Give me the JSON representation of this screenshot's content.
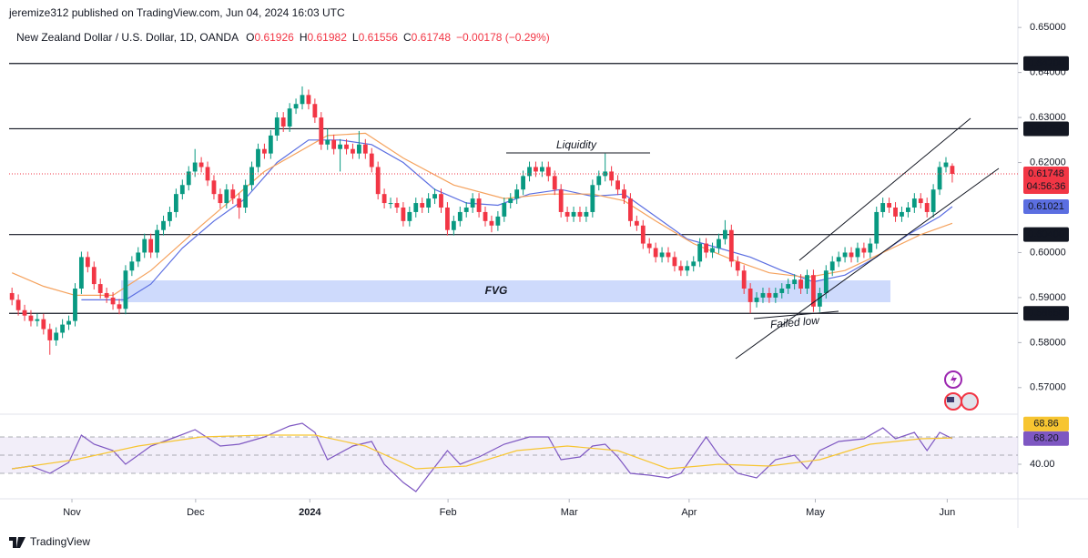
{
  "header": {
    "byline": "jeremize312 published on TradingView.com, Jun 04, 2024 16:03 UTC",
    "symbol": "New Zealand Dollar / U.S. Dollar, 1D, OANDA",
    "ohlc_letters": [
      "O",
      "H",
      "L",
      "C"
    ],
    "change": "−0.00178 (−0.29%)"
  },
  "footer": {
    "logo": "TradingView"
  },
  "chart_data": [
    {
      "type": "candlestick",
      "up_color": "#089981",
      "down_color": "#f23645",
      "categories": [
        null,
        null,
        null,
        null,
        null,
        null,
        null,
        null,
        null,
        null,
        null,
        null,
        null,
        null,
        null,
        null,
        null,
        null,
        null,
        null,
        null,
        null,
        null,
        null,
        null,
        null,
        null,
        null,
        null,
        null,
        null,
        null,
        null,
        null,
        null,
        null,
        null,
        null,
        null,
        null,
        null,
        null,
        null,
        null,
        null,
        null,
        null,
        null,
        null,
        null,
        null,
        null,
        null,
        null,
        null,
        null,
        null,
        null,
        null,
        null,
        null,
        null,
        null,
        null,
        null,
        null,
        null,
        null,
        null,
        null,
        null,
        null,
        null,
        null,
        null,
        null,
        null,
        null,
        null,
        null,
        null,
        null,
        null,
        null,
        null,
        null,
        null,
        null,
        null,
        null,
        null,
        null,
        null,
        null,
        null,
        null,
        null,
        null,
        null,
        null,
        null,
        null,
        null,
        null,
        null,
        null,
        null,
        null,
        null,
        null,
        null,
        null,
        null,
        null,
        null,
        null,
        null,
        null,
        null,
        null,
        null,
        null,
        null,
        null,
        null,
        null,
        null,
        null,
        null,
        null,
        null,
        null,
        null,
        null,
        null,
        null,
        null,
        null,
        null,
        null,
        null,
        null,
        null,
        null,
        null,
        null,
        null,
        null,
        null,
        null
      ],
      "open": [
        0.591,
        0.5895,
        0.5872,
        0.586,
        0.5848,
        0.5852,
        0.583,
        0.5805,
        0.5822,
        0.584,
        0.5848,
        0.592,
        0.599,
        0.5968,
        0.593,
        0.591,
        0.59,
        0.5885,
        0.5875,
        0.596,
        0.598,
        0.6,
        0.603,
        0.6,
        0.605,
        0.607,
        0.609,
        0.613,
        0.615,
        0.618,
        0.62,
        0.619,
        0.616,
        0.613,
        0.611,
        0.614,
        0.612,
        0.61,
        0.615,
        0.619,
        0.623,
        0.622,
        0.626,
        0.63,
        0.628,
        0.632,
        0.633,
        0.635,
        0.633,
        0.63,
        0.624,
        0.625,
        0.623,
        0.624,
        0.623,
        0.622,
        0.624,
        0.622,
        0.619,
        0.613,
        0.611,
        0.611,
        0.61,
        0.607,
        0.609,
        0.611,
        0.61,
        0.612,
        0.613,
        0.61,
        0.605,
        0.607,
        0.609,
        0.61,
        0.612,
        0.609,
        0.607,
        0.606,
        0.608,
        0.611,
        0.612,
        0.614,
        0.617,
        0.619,
        0.618,
        0.619,
        0.617,
        0.614,
        0.609,
        0.608,
        0.609,
        0.608,
        0.609,
        0.615,
        0.617,
        0.618,
        0.616,
        0.614,
        0.612,
        0.607,
        0.606,
        0.602,
        0.601,
        0.599,
        0.6,
        0.599,
        0.597,
        0.596,
        0.597,
        0.598,
        0.602,
        0.6,
        0.601,
        0.603,
        0.605,
        0.598,
        0.596,
        0.592,
        0.589,
        0.59,
        0.591,
        0.59,
        0.591,
        0.592,
        0.593,
        0.594,
        0.592,
        0.595,
        0.588,
        0.591,
        0.596,
        0.598,
        0.599,
        0.6,
        0.599,
        0.601,
        0.6,
        0.602,
        0.609,
        0.611,
        0.61,
        0.608,
        0.609,
        0.61,
        0.612,
        0.611,
        0.609,
        0.614,
        0.619,
        0.61926
      ],
      "high": [
        0.5922,
        0.5907,
        0.5884,
        0.5872,
        0.5864,
        0.5864,
        0.5842,
        0.5834,
        0.5852,
        0.586,
        0.5932,
        0.6002,
        0.6002,
        0.598,
        0.5942,
        0.5922,
        0.5912,
        0.5897,
        0.5972,
        0.5992,
        0.6012,
        0.6042,
        0.6042,
        0.6062,
        0.6082,
        0.6102,
        0.6142,
        0.6162,
        0.6192,
        0.623,
        0.6212,
        0.6202,
        0.6172,
        0.6142,
        0.6152,
        0.6152,
        0.6132,
        0.6162,
        0.6202,
        0.6242,
        0.6242,
        0.6272,
        0.6312,
        0.6312,
        0.6332,
        0.6342,
        0.6369,
        0.6362,
        0.6342,
        0.6312,
        0.6275,
        0.6262,
        0.6252,
        0.6252,
        0.6242,
        0.627,
        0.6252,
        0.6232,
        0.6202,
        0.6142,
        0.6122,
        0.6122,
        0.6112,
        0.6102,
        0.6122,
        0.6122,
        0.6132,
        0.6142,
        0.6142,
        0.6112,
        0.6082,
        0.6102,
        0.6112,
        0.6132,
        0.6132,
        0.6102,
        0.6082,
        0.6092,
        0.6122,
        0.6132,
        0.6152,
        0.6182,
        0.6202,
        0.6202,
        0.6202,
        0.6202,
        0.6182,
        0.6152,
        0.6102,
        0.6102,
        0.6102,
        0.6102,
        0.6162,
        0.6182,
        0.622,
        0.6192,
        0.6172,
        0.6152,
        0.6132,
        0.6082,
        0.6072,
        0.6032,
        0.6022,
        0.6012,
        0.6012,
        0.6002,
        0.5982,
        0.5982,
        0.5992,
        0.6032,
        0.6032,
        0.6022,
        0.6042,
        0.6072,
        0.6062,
        0.5992,
        0.5972,
        0.5932,
        0.5912,
        0.5922,
        0.5922,
        0.5922,
        0.5932,
        0.5942,
        0.5952,
        0.5952,
        0.5962,
        0.5962,
        0.5922,
        0.5972,
        0.5992,
        0.6002,
        0.6012,
        0.6012,
        0.6022,
        0.6022,
        0.6032,
        0.6102,
        0.6122,
        0.6122,
        0.6112,
        0.6102,
        0.6112,
        0.6132,
        0.6132,
        0.6122,
        0.6152,
        0.6202,
        0.6212,
        0.61982
      ],
      "low": [
        0.5883,
        0.586,
        0.5848,
        0.5836,
        0.5836,
        0.5818,
        0.5773,
        0.5793,
        0.581,
        0.5828,
        0.5836,
        0.5908,
        0.5956,
        0.5918,
        0.5898,
        0.5888,
        0.5873,
        0.5863,
        0.5863,
        0.5948,
        0.5968,
        0.5988,
        0.5988,
        0.5988,
        0.6038,
        0.6058,
        0.6078,
        0.6118,
        0.6138,
        0.6168,
        0.6178,
        0.6148,
        0.6118,
        0.6098,
        0.6098,
        0.6108,
        0.6075,
        0.6088,
        0.6138,
        0.6178,
        0.6208,
        0.6208,
        0.6248,
        0.6268,
        0.6268,
        0.6308,
        0.6318,
        0.6318,
        0.6288,
        0.6228,
        0.6228,
        0.6218,
        0.618,
        0.6218,
        0.6208,
        0.6208,
        0.6208,
        0.6178,
        0.6118,
        0.6098,
        0.6098,
        0.6088,
        0.6058,
        0.6058,
        0.6078,
        0.6088,
        0.6088,
        0.6108,
        0.6088,
        0.6038,
        0.6038,
        0.6058,
        0.6078,
        0.6088,
        0.6078,
        0.6058,
        0.6045,
        0.6048,
        0.6068,
        0.6098,
        0.6108,
        0.6128,
        0.6158,
        0.6168,
        0.6168,
        0.6158,
        0.6128,
        0.6078,
        0.6068,
        0.6068,
        0.6068,
        0.6068,
        0.6078,
        0.6138,
        0.6158,
        0.6148,
        0.6128,
        0.6108,
        0.6058,
        0.6048,
        0.6008,
        0.5998,
        0.5978,
        0.5978,
        0.5978,
        0.5958,
        0.5948,
        0.5948,
        0.5958,
        0.5968,
        0.5988,
        0.5988,
        0.5998,
        0.6018,
        0.5968,
        0.5948,
        0.5908,
        0.5865,
        0.5878,
        0.5888,
        0.5888,
        0.5888,
        0.5898,
        0.5908,
        0.5918,
        0.5908,
        0.5908,
        0.5868,
        0.5868,
        0.5898,
        0.5948,
        0.5968,
        0.5978,
        0.5978,
        0.5978,
        0.5988,
        0.5988,
        0.6008,
        0.6078,
        0.6088,
        0.6068,
        0.6068,
        0.6078,
        0.6088,
        0.6098,
        0.6078,
        0.6078,
        0.6128,
        0.6178,
        0.61556
      ],
      "close": [
        0.5895,
        0.5872,
        0.586,
        0.5848,
        0.5852,
        0.583,
        0.5805,
        0.5822,
        0.584,
        0.5848,
        0.592,
        0.599,
        0.5968,
        0.593,
        0.591,
        0.59,
        0.5885,
        0.5875,
        0.596,
        0.598,
        0.6,
        0.603,
        0.6,
        0.605,
        0.607,
        0.609,
        0.613,
        0.615,
        0.618,
        0.62,
        0.619,
        0.616,
        0.613,
        0.611,
        0.614,
        0.612,
        0.61,
        0.615,
        0.619,
        0.623,
        0.622,
        0.626,
        0.63,
        0.628,
        0.632,
        0.633,
        0.635,
        0.633,
        0.63,
        0.624,
        0.625,
        0.623,
        0.624,
        0.623,
        0.622,
        0.624,
        0.622,
        0.619,
        0.613,
        0.611,
        0.611,
        0.61,
        0.607,
        0.609,
        0.611,
        0.61,
        0.612,
        0.613,
        0.61,
        0.605,
        0.607,
        0.609,
        0.61,
        0.612,
        0.609,
        0.607,
        0.606,
        0.608,
        0.611,
        0.612,
        0.614,
        0.617,
        0.619,
        0.618,
        0.619,
        0.617,
        0.614,
        0.609,
        0.608,
        0.609,
        0.608,
        0.609,
        0.615,
        0.617,
        0.618,
        0.616,
        0.614,
        0.612,
        0.607,
        0.606,
        0.602,
        0.601,
        0.599,
        0.6,
        0.599,
        0.597,
        0.596,
        0.597,
        0.598,
        0.602,
        0.6,
        0.601,
        0.603,
        0.605,
        0.598,
        0.596,
        0.592,
        0.589,
        0.59,
        0.591,
        0.59,
        0.591,
        0.592,
        0.593,
        0.594,
        0.592,
        0.595,
        0.588,
        0.591,
        0.596,
        0.598,
        0.599,
        0.6,
        0.599,
        0.601,
        0.6,
        0.602,
        0.609,
        0.611,
        0.61,
        0.608,
        0.609,
        0.61,
        0.612,
        0.611,
        0.609,
        0.614,
        0.619,
        0.62,
        0.61748
      ],
      "overlays": [
        {
          "color": "#5b6ee1",
          "x": [
            11,
            18,
            22,
            27,
            32,
            37,
            42,
            47,
            52,
            57,
            62,
            67,
            72,
            77,
            82,
            87,
            92,
            97,
            102,
            107,
            112,
            117,
            122,
            127,
            132,
            137,
            142,
            147,
            149
          ],
          "values": [
            0.5895,
            0.5895,
            0.593,
            0.601,
            0.607,
            0.612,
            0.62,
            0.625,
            0.625,
            0.624,
            0.62,
            0.614,
            0.611,
            0.6105,
            0.613,
            0.614,
            0.6125,
            0.613,
            0.608,
            0.603,
            0.601,
            0.599,
            0.596,
            0.5935,
            0.595,
            0.599,
            0.604,
            0.608,
            0.61021
          ]
        },
        {
          "color": "#f5a25d",
          "x": [
            0,
            5,
            10,
            16,
            22,
            30,
            40,
            50,
            56,
            62,
            70,
            78,
            85,
            92,
            97,
            102,
            108,
            114,
            120,
            126,
            132,
            138,
            144,
            149
          ],
          "values": [
            0.5955,
            0.5925,
            0.5905,
            0.5905,
            0.596,
            0.606,
            0.618,
            0.626,
            0.6265,
            0.621,
            0.615,
            0.612,
            0.613,
            0.613,
            0.6115,
            0.607,
            0.602,
            0.5985,
            0.5955,
            0.5945,
            0.596,
            0.6,
            0.604,
            0.6065
          ]
        }
      ],
      "levels": [
        {
          "value": 0.642,
          "label": "0.64200"
        },
        {
          "value": 0.6275,
          "label": "0.62750"
        },
        {
          "value": 0.604,
          "label": "0.60400"
        },
        {
          "value": 0.5865,
          "label": "0.58650"
        }
      ],
      "countdown": "04:56:36",
      "annotations": [
        "Liquidity",
        "FVG",
        "Failed low"
      ],
      "xlim": [
        -1.9,
        159.4
      ],
      "ylim": [
        0.5641,
        0.6561
      ],
      "xticks": [
        {
          "value": 9.5,
          "label": "Nov"
        },
        {
          "value": 29.1,
          "label": "Dec"
        },
        {
          "value": 47.2,
          "label": "2024"
        },
        {
          "value": 69.1,
          "label": "Feb"
        },
        {
          "value": 88.3,
          "label": "Mar"
        },
        {
          "value": 107.3,
          "label": "Apr"
        },
        {
          "value": 127.3,
          "label": "May"
        },
        {
          "value": 148.2,
          "label": "Jun"
        }
      ],
      "yticks": [
        {
          "value": 0.65,
          "label": "0.65000"
        },
        {
          "value": 0.64,
          "label": "0.64000"
        },
        {
          "value": 0.63,
          "label": "0.63000"
        },
        {
          "value": 0.62,
          "label": "0.62000"
        },
        {
          "value": 0.6,
          "label": "0.60000"
        },
        {
          "value": 0.59,
          "label": "0.59000"
        },
        {
          "value": 0.58,
          "label": "0.58000"
        },
        {
          "value": 0.57,
          "label": "0.57000"
        }
      ]
    },
    {
      "type": "line",
      "xlim": [
        -1.9,
        159.4
      ],
      "ylim": [
        2,
        94
      ],
      "yticks": [
        {
          "value": 40,
          "label": "40.00"
        }
      ],
      "hlines": [
        70,
        50,
        30
      ],
      "band_color": "#7e57c2",
      "series": [
        {
          "color": "#7e57c2",
          "x": [
            0,
            3,
            6,
            9,
            11,
            13,
            16,
            18,
            22,
            26,
            29,
            33,
            36,
            40,
            44,
            46,
            48,
            50,
            54,
            57,
            59,
            62,
            64,
            66,
            69,
            71,
            74,
            78,
            82,
            85,
            87,
            90,
            92,
            94,
            96,
            98,
            101,
            104,
            106,
            110,
            112,
            115,
            118,
            121,
            124,
            126,
            128,
            131,
            135,
            138,
            140,
            143,
            145,
            147,
            149
          ],
          "values": [
            35,
            38,
            30,
            42,
            72,
            62,
            55,
            40,
            60,
            70,
            78,
            60,
            62,
            70,
            82,
            85,
            75,
            45,
            60,
            65,
            40,
            20,
            10,
            28,
            55,
            40,
            48,
            62,
            70,
            70,
            45,
            48,
            60,
            62,
            48,
            30,
            28,
            25,
            30,
            70,
            50,
            30,
            25,
            45,
            50,
            35,
            55,
            65,
            68,
            80,
            68,
            75,
            55,
            75,
            68.2
          ],
          "value_labels": [
            null,
            null,
            null,
            null,
            null,
            null,
            null,
            null,
            null,
            null,
            null,
            null,
            null,
            null,
            null,
            null,
            null,
            null,
            null,
            null,
            null,
            null,
            null,
            null,
            null,
            null,
            null,
            null,
            null,
            null,
            null,
            null,
            null,
            null,
            null,
            null,
            null,
            null,
            null,
            null,
            null,
            null,
            null,
            null,
            null,
            null,
            null,
            null,
            null,
            null,
            null,
            null,
            null,
            null,
            "68.20"
          ]
        },
        {
          "color": "#f7c531",
          "x": [
            0,
            10,
            20,
            30,
            40,
            48,
            56,
            64,
            72,
            80,
            88,
            96,
            104,
            112,
            120,
            128,
            136,
            144,
            149
          ],
          "values": [
            35,
            45,
            60,
            70,
            72,
            72,
            60,
            35,
            38,
            55,
            60,
            55,
            35,
            40,
            38,
            45,
            62,
            68,
            68.86
          ]
        }
      ]
    }
  ]
}
